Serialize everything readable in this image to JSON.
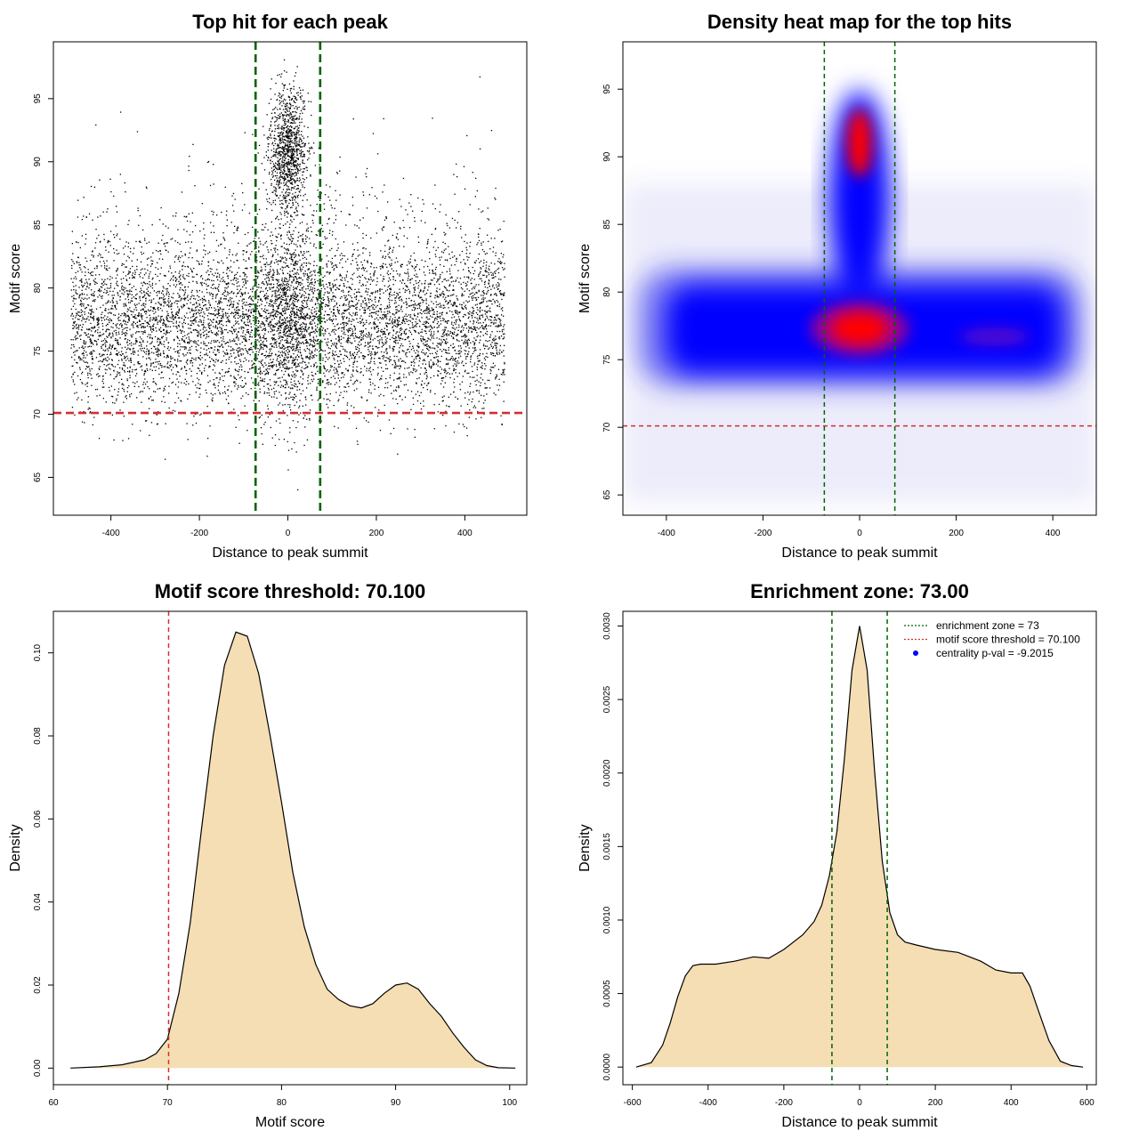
{
  "chart_data": [
    {
      "type": "scatter",
      "title": "Top hit for each peak",
      "xlabel": "Distance to peak summit",
      "ylabel": "Motif score",
      "xlim": [
        -530,
        540
      ],
      "ylim": [
        62,
        99.5
      ],
      "xticks": [
        -400,
        -200,
        0,
        200,
        400
      ],
      "yticks": [
        65,
        70,
        75,
        80,
        85,
        90,
        95
      ],
      "n_points_approx": 9000,
      "x_range": [
        -490,
        490
      ],
      "main_cluster": {
        "x_center": 0,
        "y_center": 77,
        "y_sd": 3.2
      },
      "central_peak": {
        "x_center": 0,
        "x_sd": 20,
        "y_center": 91,
        "y_sd": 2.5
      },
      "hlines": [
        {
          "y": 70.1,
          "color": "#d32f2f",
          "style": "dashed"
        }
      ],
      "vlines": [
        {
          "x": -73,
          "color": "#006400",
          "style": "dashed"
        },
        {
          "x": 73,
          "color": "#006400",
          "style": "dashed"
        }
      ]
    },
    {
      "type": "heatmap",
      "title": "Density heat map for the top hits",
      "xlabel": "Distance to peak summit",
      "ylabel": "Motif score",
      "xlim": [
        -490,
        490
      ],
      "ylim": [
        63.5,
        98.5
      ],
      "xticks": [
        -400,
        -200,
        0,
        200,
        400
      ],
      "yticks": [
        65,
        70,
        75,
        80,
        85,
        90,
        95
      ],
      "colormap": [
        "#ffffff",
        "#0000ff",
        "#ff0000"
      ],
      "density_modes": [
        {
          "x": 0,
          "y": 77.3,
          "level": "high"
        },
        {
          "x": 0,
          "y": 91,
          "level": "high"
        },
        {
          "x": 280,
          "y": 76.7,
          "level": "medium"
        }
      ],
      "hlines": [
        {
          "y": 70.1,
          "color": "#d32f2f",
          "style": "dashed"
        }
      ],
      "vlines": [
        {
          "x": -73,
          "color": "#006400",
          "style": "dashed"
        },
        {
          "x": 73,
          "color": "#006400",
          "style": "dashed"
        }
      ]
    },
    {
      "type": "area",
      "title": "Motif score threshold: 70.100",
      "xlabel": "Motif score",
      "ylabel": "Density",
      "xlim": [
        60,
        101.5
      ],
      "ylim": [
        -0.004,
        0.11
      ],
      "xticks": [
        60,
        70,
        80,
        90,
        100
      ],
      "yticks": [
        0.0,
        0.02,
        0.04,
        0.06,
        0.08,
        0.1
      ],
      "ytick_labels": [
        "0.00",
        "0.02",
        "0.04",
        "0.06",
        "0.08",
        "0.10"
      ],
      "fill": "#f5deb3",
      "x": [
        61.5,
        64,
        66,
        68,
        69,
        70,
        71,
        72,
        73,
        74,
        75,
        76,
        77,
        78,
        79,
        80,
        81,
        82,
        83,
        84,
        85,
        86,
        87,
        88,
        89,
        90,
        91,
        92,
        93,
        94,
        95,
        96,
        97,
        98,
        99,
        100.5
      ],
      "y": [
        0,
        0.0003,
        0.0008,
        0.002,
        0.0035,
        0.007,
        0.018,
        0.035,
        0.058,
        0.08,
        0.097,
        0.105,
        0.104,
        0.095,
        0.08,
        0.064,
        0.047,
        0.034,
        0.025,
        0.019,
        0.0165,
        0.015,
        0.0145,
        0.0155,
        0.018,
        0.02,
        0.0205,
        0.019,
        0.0155,
        0.0125,
        0.0085,
        0.005,
        0.002,
        0.0006,
        0.0001,
        0
      ],
      "vlines": [
        {
          "x": 70.1,
          "color": "#d32f2f",
          "style": "dashed"
        }
      ]
    },
    {
      "type": "area",
      "title": "Enrichment zone: 73.00",
      "xlabel": "Distance to peak summit",
      "ylabel": "Density",
      "xlim": [
        -625,
        625
      ],
      "ylim": [
        -0.00012,
        0.0031
      ],
      "xticks": [
        -600,
        -400,
        -200,
        0,
        200,
        400,
        600
      ],
      "yticks": [
        0.0,
        0.0005,
        0.001,
        0.0015,
        0.002,
        0.0025,
        0.003
      ],
      "ytick_labels": [
        "0.0000",
        "0.0005",
        "0.0010",
        "0.0015",
        "0.0020",
        "0.0025",
        "0.0030"
      ],
      "fill": "#f5deb3",
      "x": [
        -590,
        -550,
        -520,
        -500,
        -480,
        -460,
        -440,
        -420,
        -380,
        -330,
        -280,
        -240,
        -200,
        -150,
        -120,
        -100,
        -80,
        -60,
        -40,
        -20,
        0,
        20,
        40,
        60,
        80,
        100,
        120,
        150,
        200,
        260,
        320,
        360,
        400,
        430,
        450,
        470,
        500,
        530,
        560,
        590
      ],
      "y": [
        0,
        3e-05,
        0.00015,
        0.0003,
        0.00048,
        0.00062,
        0.00069,
        0.0007,
        0.0007,
        0.00072,
        0.00075,
        0.00074,
        0.0008,
        0.0009,
        0.00099,
        0.0011,
        0.0013,
        0.0016,
        0.0021,
        0.0027,
        0.003,
        0.0027,
        0.002,
        0.0014,
        0.00105,
        0.0009,
        0.00085,
        0.00083,
        0.0008,
        0.00078,
        0.00072,
        0.00066,
        0.00064,
        0.00064,
        0.00055,
        0.0004,
        0.00018,
        4e-05,
        1e-05,
        0
      ],
      "vlines": [
        {
          "x": -73,
          "color": "#006400",
          "style": "dashed"
        },
        {
          "x": 73,
          "color": "#006400",
          "style": "dashed"
        }
      ],
      "legend": {
        "position": "top-right",
        "entries": [
          {
            "label": "enrichment zone = 73",
            "color": "#006400",
            "kind": "dotted-line"
          },
          {
            "label": "motif score threshold = 70.100",
            "color": "#d32f2f",
            "kind": "dotted-line"
          },
          {
            "label": "centrality p-val = -9.2015",
            "color": "#0000ff",
            "kind": "point"
          }
        ]
      }
    }
  ]
}
